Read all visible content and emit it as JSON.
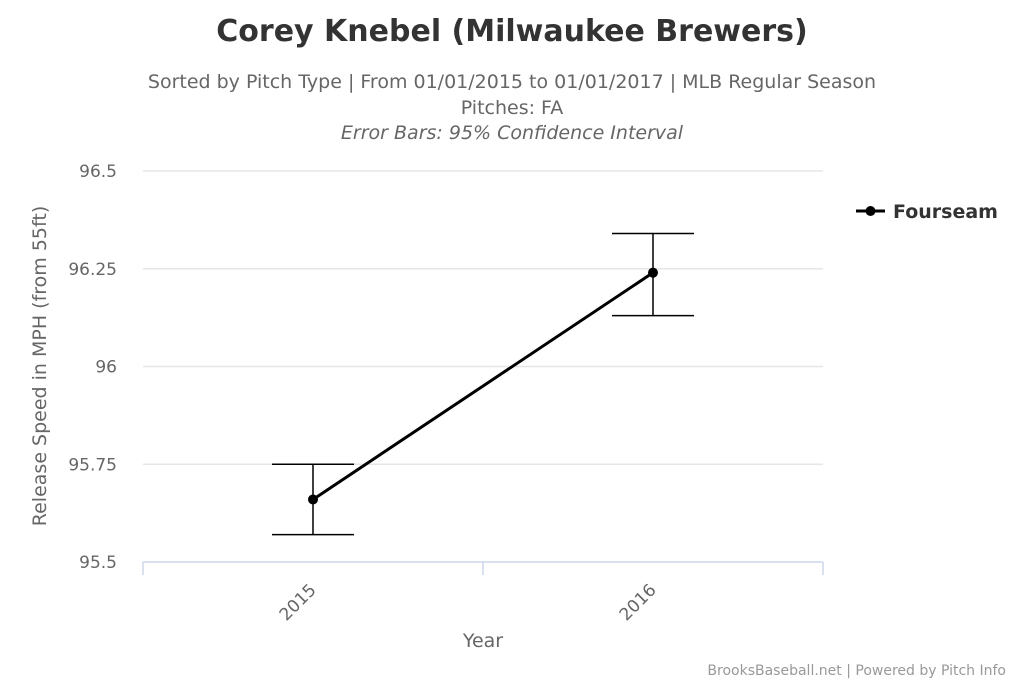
{
  "chart_data": {
    "type": "line",
    "title": "Corey Knebel (Milwaukee Brewers)",
    "subtitle_line1": "Sorted by Pitch Type | From 01/01/2015 to 01/01/2017 | MLB Regular Season",
    "subtitle_line2": "Pitches: FA",
    "subtitle_line3": "Error Bars: 95% Confidence Interval",
    "xlabel": "Year",
    "ylabel": "Release Speed in MPH (from 55ft)",
    "categories": [
      "2015",
      "2016"
    ],
    "y_ticks": [
      "95.5",
      "95.75",
      "96",
      "96.25",
      "96.5"
    ],
    "ylim": [
      95.5,
      96.5
    ],
    "grid": true,
    "legend_position": "top-right",
    "series": [
      {
        "name": "Fourseam",
        "color": "#000000",
        "values": [
          95.66,
          96.24
        ],
        "error_low": [
          95.57,
          96.13
        ],
        "error_high": [
          95.75,
          96.34
        ]
      }
    ],
    "credits": "BrooksBaseball.net | Powered by Pitch Info"
  }
}
